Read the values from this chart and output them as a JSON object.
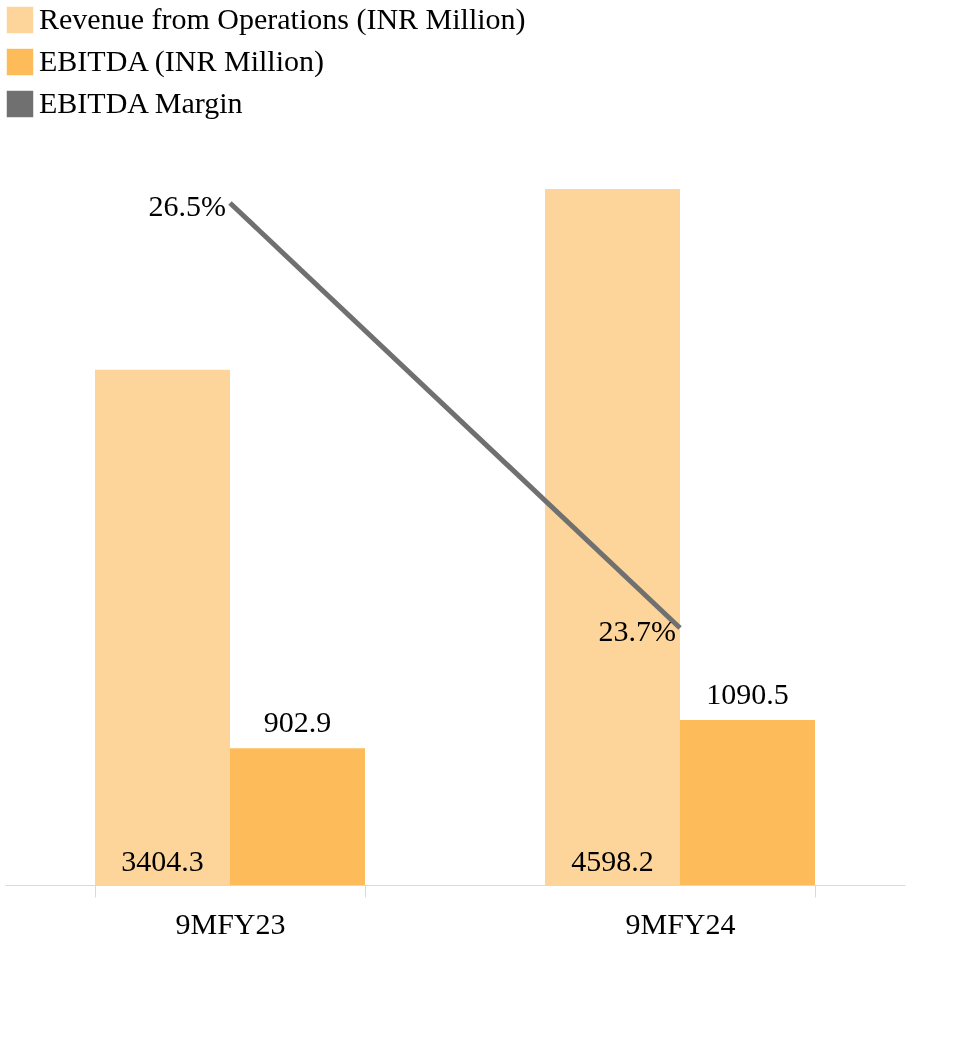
{
  "chart_data": {
    "type": "bar",
    "categories": [
      "9MFY23",
      "9MFY24"
    ],
    "series": [
      {
        "name": "Revenue from Operations (INR Million)",
        "color": "#fdd59a",
        "values": [
          3404.3,
          4598.2
        ]
      },
      {
        "name": "EBITDA (INR Million)",
        "color": "#fdbb5a",
        "values": [
          902.9,
          1090.5
        ]
      },
      {
        "name": "EBITDA Margin",
        "type": "line",
        "axis": "y2",
        "color": "#707070",
        "values": [
          26.5,
          23.7
        ],
        "value_labels": [
          "26.5%",
          "23.7%"
        ]
      }
    ],
    "tick_labels": "x",
    "data_labels": true,
    "grid": false,
    "legend": "top",
    "marker": "none",
    "line_style": "solid"
  }
}
